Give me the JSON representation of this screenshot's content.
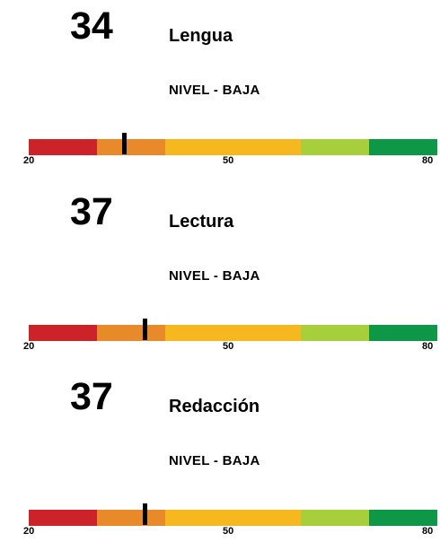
{
  "scale": {
    "min": 20,
    "max": 80,
    "tick_labels": [
      "20",
      "50",
      "80"
    ],
    "bands": [
      {
        "from": 20,
        "to": 30,
        "color": "#cc2229"
      },
      {
        "from": 30,
        "to": 40,
        "color": "#e88a2a"
      },
      {
        "from": 40,
        "to": 60,
        "color": "#f5b81e"
      },
      {
        "from": 60,
        "to": 70,
        "color": "#a6cf3b"
      },
      {
        "from": 70,
        "to": 80,
        "color": "#0f9748"
      }
    ]
  },
  "cards": [
    {
      "score": "34",
      "subject": "Lengua",
      "level": "NIVEL - BAJA",
      "marker_value": 34
    },
    {
      "score": "37",
      "subject": "Lectura",
      "level": "NIVEL - BAJA",
      "marker_value": 37
    },
    {
      "score": "37",
      "subject": "Redacción",
      "level": "NIVEL - BAJA",
      "marker_value": 37
    }
  ]
}
